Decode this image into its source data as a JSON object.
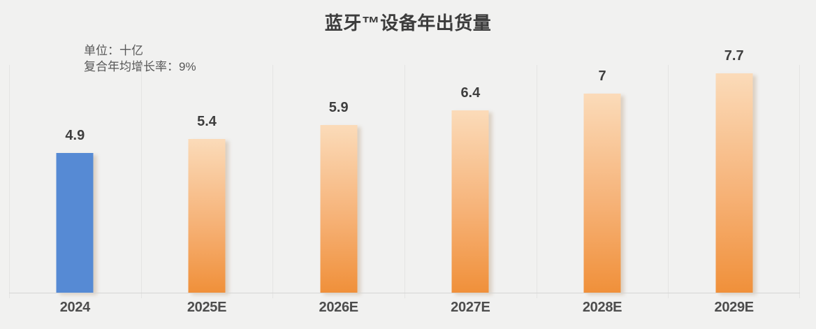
{
  "chart_data": {
    "type": "bar",
    "title": "蓝牙™设备年出货量",
    "unit_note": "单位：十亿",
    "cagr_note": "复合年均增长率：9%",
    "categories": [
      "2024",
      "2025E",
      "2026E",
      "2027E",
      "2028E",
      "2029E"
    ],
    "values": [
      4.9,
      5.4,
      5.9,
      6.4,
      7,
      7.7
    ],
    "value_labels": [
      "4.9",
      "5.4",
      "5.9",
      "6.4",
      "7",
      "7.7"
    ],
    "series_note": "first bar = actual (blue), remaining bars = forecast (orange gradient)",
    "ylim": [
      0,
      8
    ],
    "grid": "vertical lines at category boundaries, no y-axis labels",
    "legend": "none",
    "colors": {
      "background": "#F1F1F0",
      "actual_bar": "#568AD4",
      "forecast_bar_top": "#FBDBB9",
      "forecast_bar_bottom": "#F0903A",
      "gridline": "#E4E4E3",
      "axis_line": "#D5D5D4",
      "value_label_text": "#3E3E3E",
      "tick_label_text": "#4D4D4D",
      "title_text": "#3C3C3C",
      "subtitle_text": "#575757"
    }
  }
}
